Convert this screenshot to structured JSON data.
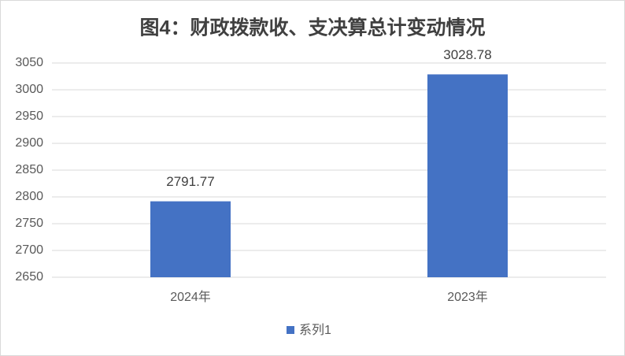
{
  "chart_data": {
    "type": "bar",
    "title": "图4：财政拨款收、支决算总计变动情况",
    "categories": [
      "2024年",
      "2023年"
    ],
    "series": [
      {
        "name": "系列1",
        "color": "#4472c4",
        "values": [
          2791.77,
          3028.78
        ]
      }
    ],
    "ylim": [
      2650,
      3050
    ],
    "yticks": [
      2650,
      2700,
      2750,
      2800,
      2850,
      2900,
      2950,
      3000,
      3050
    ],
    "grid": true,
    "legend": "bottom"
  }
}
